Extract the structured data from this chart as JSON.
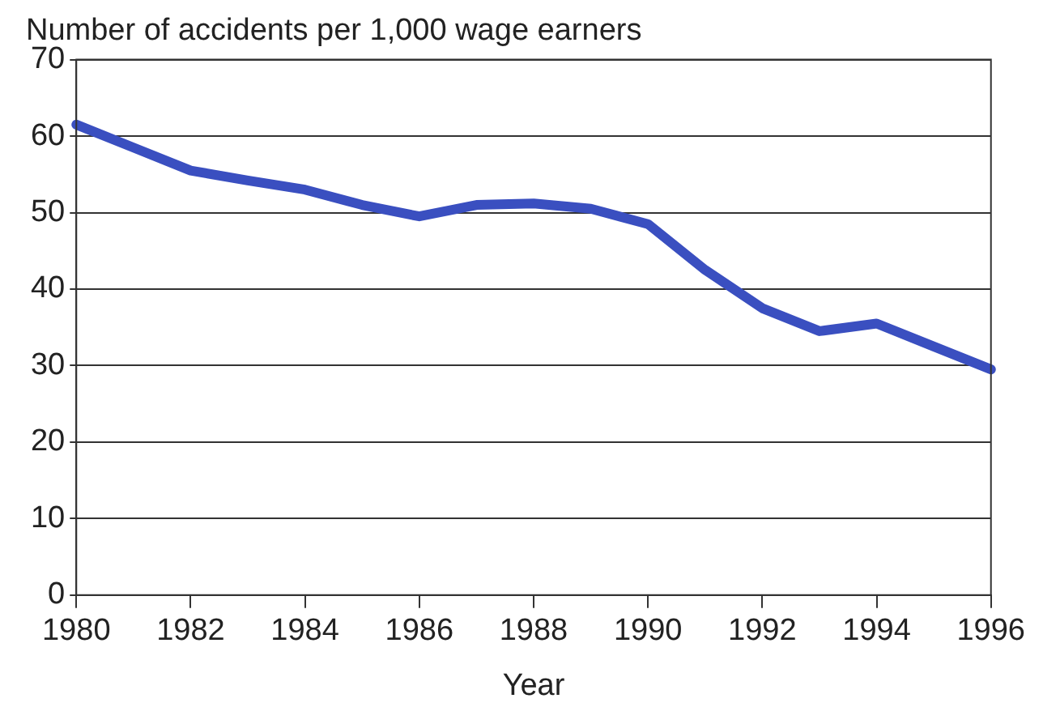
{
  "chart_data": {
    "type": "line",
    "ylabel": "Number of accidents per 1,000 wage earners",
    "xlabel": "Year",
    "x": [
      1980,
      1981,
      1982,
      1983,
      1984,
      1985,
      1986,
      1987,
      1988,
      1989,
      1990,
      1991,
      1992,
      1993,
      1994,
      1995,
      1996
    ],
    "series": [
      {
        "color": "#3a4fc0",
        "values": [
          61.5,
          58.5,
          55.5,
          54.2,
          53,
          51,
          49.5,
          51,
          51.2,
          50.5,
          48.5,
          42.5,
          37.5,
          34.5,
          35.5,
          32.5,
          29.5
        ]
      }
    ],
    "xlim": [
      1980,
      1996
    ],
    "xticks": [
      1980,
      1982,
      1984,
      1986,
      1988,
      1990,
      1992,
      1994,
      1996
    ],
    "ylim": [
      0,
      70
    ],
    "yticks": [
      0,
      10,
      20,
      30,
      40,
      50,
      60,
      70
    ],
    "grid": "y",
    "legend": false,
    "marker": "none",
    "line_style": "solid"
  }
}
